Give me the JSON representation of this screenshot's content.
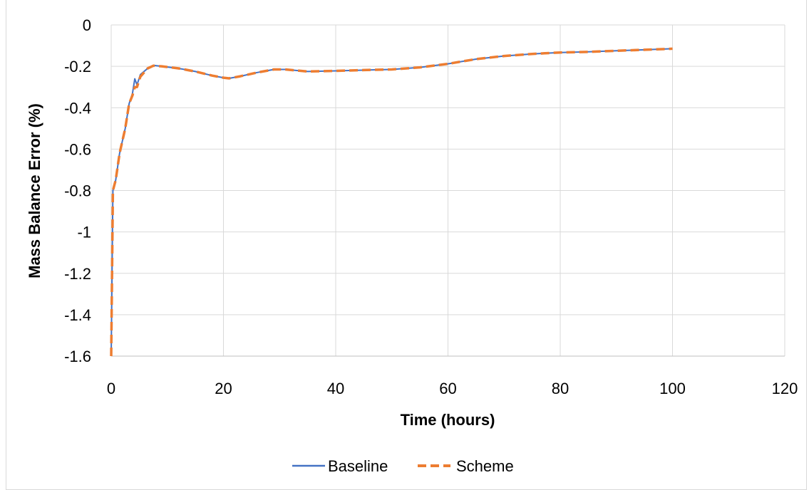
{
  "chart_data": {
    "type": "line",
    "title": "",
    "xlabel": "Time (hours)",
    "ylabel": "Mass Balance Error (%)",
    "xlim": [
      0,
      120
    ],
    "ylim": [
      -1.6,
      0
    ],
    "xticks": [
      0,
      20,
      40,
      60,
      80,
      100,
      120
    ],
    "yticks": [
      0,
      -0.2,
      -0.4,
      -0.6,
      -0.8,
      -1,
      -1.2,
      -1.4,
      -1.6
    ],
    "grid": true,
    "legend": "bottom",
    "series": [
      {
        "name": "Baseline",
        "color": "#4472C4",
        "style": "solid",
        "x": [
          0,
          0.3,
          0.8,
          1.5,
          2.5,
          3.2,
          3.8,
          4.2,
          4.6,
          5.2,
          6.5,
          7.5,
          9,
          12,
          15,
          18,
          20,
          21,
          23,
          26,
          29,
          31,
          35,
          40,
          45,
          50,
          55,
          60,
          65,
          70,
          75,
          80,
          85,
          90,
          95,
          100
        ],
        "y": [
          -1.6,
          -0.8,
          -0.75,
          -0.62,
          -0.5,
          -0.38,
          -0.33,
          -0.26,
          -0.29,
          -0.24,
          -0.21,
          -0.195,
          -0.2,
          -0.21,
          -0.225,
          -0.245,
          -0.255,
          -0.258,
          -0.248,
          -0.23,
          -0.215,
          -0.215,
          -0.225,
          -0.222,
          -0.218,
          -0.215,
          -0.205,
          -0.188,
          -0.165,
          -0.15,
          -0.14,
          -0.133,
          -0.13,
          -0.125,
          -0.12,
          -0.115
        ]
      },
      {
        "name": "Scheme",
        "color": "#ED7D31",
        "style": "dashed",
        "x": [
          0,
          0.3,
          0.8,
          1.5,
          2.5,
          3.2,
          3.8,
          4.2,
          4.6,
          5.2,
          6.5,
          7.5,
          9,
          12,
          15,
          18,
          20,
          21,
          23,
          26,
          29,
          31,
          35,
          40,
          45,
          50,
          55,
          60,
          65,
          70,
          75,
          80,
          85,
          90,
          95,
          100
        ],
        "y": [
          -1.6,
          -0.8,
          -0.75,
          -0.62,
          -0.5,
          -0.38,
          -0.34,
          -0.3,
          -0.3,
          -0.25,
          -0.21,
          -0.197,
          -0.2,
          -0.21,
          -0.225,
          -0.245,
          -0.255,
          -0.258,
          -0.248,
          -0.23,
          -0.215,
          -0.215,
          -0.225,
          -0.222,
          -0.218,
          -0.215,
          -0.205,
          -0.188,
          -0.165,
          -0.15,
          -0.14,
          -0.133,
          -0.13,
          -0.125,
          -0.12,
          -0.115
        ]
      }
    ]
  }
}
